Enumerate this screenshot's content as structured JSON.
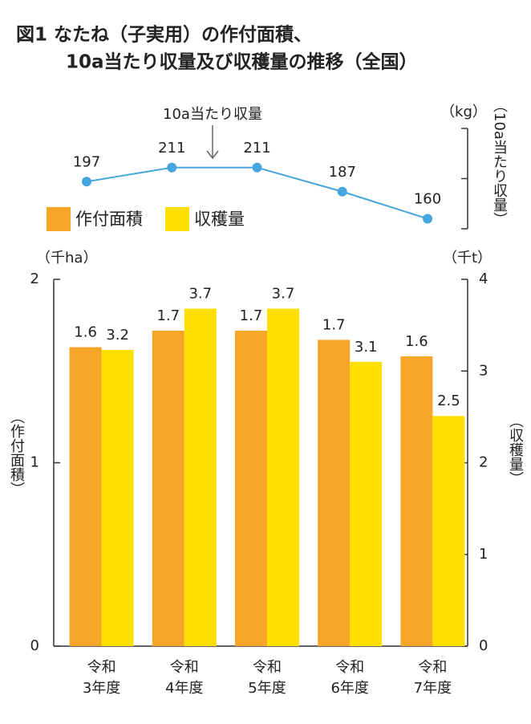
{
  "title": [
    "図1 なたね（子実用）の作付面積、",
    "10a当たり収量及び収穫量の推移（全国）"
  ],
  "chart_data": [
    {
      "type": "line",
      "annotation": "10a当たり収量",
      "unit": "（kg）",
      "ylabel": "（10a当たり収量）",
      "values": [
        197,
        211,
        211,
        187,
        160
      ],
      "color": "#45a5dc",
      "ylim": [
        150,
        250
      ]
    },
    {
      "type": "bar",
      "categories": [
        [
          "令和",
          "3年度"
        ],
        [
          "令和",
          "4年度"
        ],
        [
          "令和",
          "5年度"
        ],
        [
          "令和",
          "6年度"
        ],
        [
          "令和",
          "7年度"
        ]
      ],
      "series": [
        {
          "name": "作付面積",
          "color": "#f6a526",
          "values": [
            1.63,
            1.72,
            1.72,
            1.67,
            1.58
          ],
          "value_labels": [
            "1.6",
            "1.7",
            "1.7",
            "1.7",
            "1.6"
          ]
        },
        {
          "name": "収穫量",
          "color": "#fde000",
          "axis": "y2",
          "values": [
            3.23,
            3.68,
            3.68,
            3.1,
            2.51
          ],
          "value_labels": [
            "3.2",
            "3.7",
            "3.7",
            "3.1",
            "2.5"
          ]
        }
      ],
      "ylabel": "（作付面積）",
      "y2label": "（収穫量）",
      "yunit": "（千ha）",
      "y2unit": "（千t）",
      "ylim": [
        0,
        2
      ],
      "yticks": [
        0,
        1,
        2
      ],
      "y2lim": [
        0,
        4
      ],
      "y2ticks": [
        0,
        1,
        2,
        3,
        4
      ]
    }
  ]
}
